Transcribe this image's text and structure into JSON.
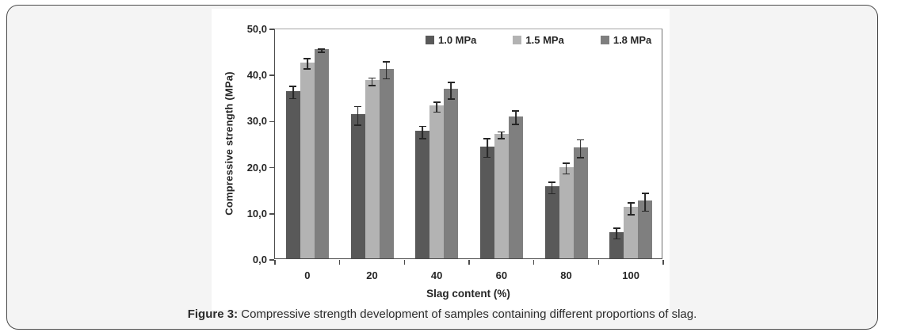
{
  "figure": {
    "caption_label": "Figure 3:",
    "caption_text": " Compressive strength development of samples containing different proportions of slag."
  },
  "chart_data": {
    "type": "bar",
    "title": "",
    "xlabel": "Slag content (%)",
    "ylabel": "Compressive strength (MPa)",
    "categories": [
      "0",
      "20",
      "40",
      "60",
      "80",
      "100"
    ],
    "series": [
      {
        "name": "1.0 MPa",
        "color": "#595959",
        "values": [
          36.3,
          31.2,
          27.6,
          24.3,
          15.6,
          5.7
        ],
        "errors": [
          1.5,
          2.2,
          1.5,
          2.2,
          1.4,
          1.3
        ]
      },
      {
        "name": "1.5 MPa",
        "color": "#b3b3b3",
        "values": [
          42.5,
          38.6,
          33.1,
          27.0,
          19.8,
          11.1
        ],
        "errors": [
          1.3,
          1.0,
          1.2,
          0.9,
          1.3,
          1.4
        ]
      },
      {
        "name": "1.8 MPa",
        "color": "#7f7f7f",
        "values": [
          45.3,
          41.1,
          36.7,
          30.8,
          24.1,
          12.5
        ],
        "errors": [
          0.5,
          2.0,
          2.0,
          1.6,
          2.1,
          2.1
        ]
      }
    ],
    "ylim": [
      0,
      50
    ],
    "ytick_step": 10,
    "ytick_labels": [
      "0,0",
      "10,0",
      "20,0",
      "30,0",
      "40,0",
      "50,0"
    ],
    "grid": false,
    "legend_position": "top-inside",
    "error_bar_color": "#262626"
  }
}
